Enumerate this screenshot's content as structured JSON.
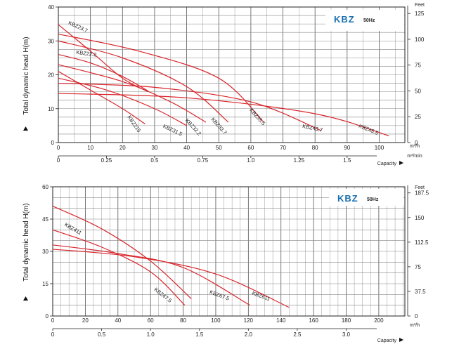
{
  "chart_data": [
    {
      "type": "line",
      "brand": "KBZ",
      "frequency": "50Hz",
      "ylabel": "Total dynamic head H(m)",
      "y_right_unit": "Feet",
      "x_unit": "m³/h",
      "x2_unit": "m³/min",
      "x2_label": "Capacity",
      "x_ticks": [
        "0",
        "10",
        "20",
        "30",
        "40",
        "50",
        "60",
        "70",
        "80",
        "90",
        "100"
      ],
      "x2_ticks": [
        "0",
        "0.25",
        "0.5",
        "0.75",
        "1.0",
        "1.25",
        "1.5"
      ],
      "y_ticks": [
        "0",
        "10",
        "20",
        "30",
        "40"
      ],
      "y_right_ticks": [
        "0",
        "25",
        "50",
        "75",
        "100",
        "125"
      ],
      "xlim": [
        0,
        108
      ],
      "ylim": [
        0,
        40
      ],
      "series": [
        {
          "name": "KBZ23.7",
          "x": [
            0,
            10,
            20,
            28
          ],
          "y": [
            34.8,
            27,
            19,
            15
          ]
        },
        {
          "name": "KBZ22.2",
          "x": [
            0,
            10,
            20,
            28
          ],
          "y": [
            26,
            23.5,
            19.5,
            15.2
          ]
        },
        {
          "name": "KBZ215",
          "x": [
            0,
            10,
            20,
            27
          ],
          "y": [
            21,
            15.5,
            10,
            5.5
          ]
        },
        {
          "name": "KBZ31.5",
          "x": [
            0,
            15,
            30,
            40
          ],
          "y": [
            19,
            15.5,
            10,
            5
          ]
        },
        {
          "name": "KBZ32.2",
          "x": [
            0,
            20,
            35,
            46
          ],
          "y": [
            23,
            18,
            12,
            6
          ]
        },
        {
          "name": "KBZ33.7",
          "x": [
            0,
            20,
            40,
            53
          ],
          "y": [
            30,
            25,
            16.5,
            6
          ]
        },
        {
          "name": "KBZ35.5",
          "x": [
            0,
            25,
            50,
            64
          ],
          "y": [
            32,
            27,
            19,
            6
          ]
        },
        {
          "name": "KBZ43.7",
          "x": [
            0,
            30,
            60,
            82
          ],
          "y": [
            17.5,
            16.3,
            12,
            3.5
          ]
        },
        {
          "name": "KBZ45.5",
          "x": [
            0,
            40,
            80,
            103
          ],
          "y": [
            14.5,
            13.2,
            8.5,
            2
          ]
        }
      ],
      "label_positions": [
        {
          "name": "KBZ23.7",
          "x": 3,
          "y": 35,
          "angle": 25
        },
        {
          "name": "KBZ22.2",
          "x": 5.5,
          "y": 26.2,
          "angle": 8
        },
        {
          "name": "KBZ215",
          "x": 21.5,
          "y": 7.5,
          "angle": 55
        },
        {
          "name": "KBZ31.5",
          "x": 32.5,
          "y": 4.5,
          "angle": 25
        },
        {
          "name": "KBZ32.2",
          "x": 39.5,
          "y": 6.5,
          "angle": 48
        },
        {
          "name": "KBZ33.7",
          "x": 47.5,
          "y": 6.8,
          "angle": 48
        },
        {
          "name": "KBZ35.5",
          "x": 59.5,
          "y": 9.5,
          "angle": 48
        },
        {
          "name": "KBZ43.7",
          "x": 76,
          "y": 4.4,
          "angle": 12
        },
        {
          "name": "KBZ45.5",
          "x": 93.5,
          "y": 4.5,
          "angle": 22
        }
      ]
    },
    {
      "type": "line",
      "brand": "KBZ",
      "frequency": "50Hz",
      "ylabel": "Total dynamic head H(m)",
      "y_right_unit": "Feet",
      "x_unit": "m³/h",
      "x2_label": "Capacity",
      "x_ticks": [
        "0",
        "20",
        "40",
        "60",
        "80",
        "100",
        "120",
        "140",
        "160",
        "180",
        "200"
      ],
      "x2_ticks": [
        "0",
        "0.5",
        "1.0",
        "1.5",
        "2.0",
        "2.5",
        "3.0"
      ],
      "y_ticks": [
        "0",
        "15",
        "30",
        "45",
        "60"
      ],
      "y_right_ticks": [
        "0",
        "37.5",
        "75",
        "112.5",
        "150",
        "187.5"
      ],
      "xlim": [
        0,
        216
      ],
      "ylim": [
        0,
        60
      ],
      "series": [
        {
          "name": "KBZ411",
          "x": [
            0,
            30,
            60,
            85
          ],
          "y": [
            51,
            40.5,
            25.5,
            8
          ]
        },
        {
          "name": "KBZ47.5",
          "x": [
            0,
            30,
            60,
            81
          ],
          "y": [
            40,
            32,
            20.5,
            5
          ]
        },
        {
          "name": "KBZ67.5",
          "x": [
            0,
            40,
            80,
            121
          ],
          "y": [
            33,
            29,
            22.5,
            5
          ]
        },
        {
          "name": "KBZ611",
          "x": [
            0,
            50,
            100,
            145
          ],
          "y": [
            31,
            27.5,
            19.5,
            4
          ]
        }
      ],
      "label_positions": [
        {
          "name": "KBZ411",
          "x": 7,
          "y": 42,
          "angle": 30
        },
        {
          "name": "KBZ47.5",
          "x": 62,
          "y": 12,
          "angle": 38
        },
        {
          "name": "KBZ67.5",
          "x": 96,
          "y": 10.5,
          "angle": 20
        },
        {
          "name": "KBZ611",
          "x": 122,
          "y": 10,
          "angle": 20
        }
      ]
    }
  ]
}
